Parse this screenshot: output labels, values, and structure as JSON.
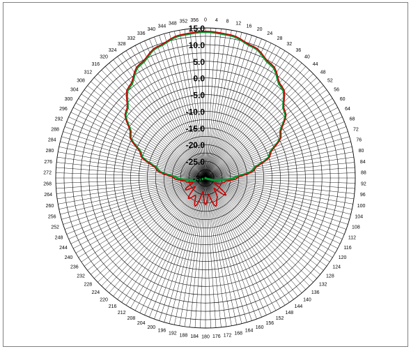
{
  "chart_data": {
    "type": "line",
    "polar": true,
    "title": "",
    "angle_ticks_deg": [
      0,
      4,
      8,
      12,
      16,
      20,
      24,
      28,
      32,
      36,
      40,
      44,
      48,
      52,
      56,
      60,
      64,
      68,
      72,
      76,
      80,
      84,
      88,
      92,
      96,
      100,
      104,
      108,
      112,
      116,
      120,
      124,
      128,
      132,
      136,
      140,
      144,
      148,
      152,
      156,
      160,
      164,
      168,
      172,
      176,
      180,
      184,
      188,
      192,
      196,
      200,
      204,
      208,
      212,
      216,
      220,
      224,
      228,
      232,
      236,
      240,
      244,
      248,
      252,
      256,
      260,
      264,
      268,
      272,
      276,
      280,
      284,
      288,
      292,
      296,
      300,
      304,
      308,
      312,
      316,
      320,
      324,
      328,
      332,
      336,
      340,
      344,
      348,
      352,
      356
    ],
    "radial_ticks": [
      "15.0",
      "10.0",
      "5.0",
      "0.0",
      "-5.0",
      "-10.0",
      "-15.0",
      "-20.0",
      "-25.0",
      "-30"
    ],
    "radial_range": [
      -30,
      15
    ],
    "grid": true,
    "series": [
      {
        "color": "#009933",
        "angles_deg": [
          0,
          10,
          20,
          30,
          40,
          50,
          60,
          70,
          80,
          90,
          100,
          110,
          120,
          130,
          140,
          150,
          160,
          170,
          180,
          190,
          200,
          210,
          220,
          230,
          240,
          250,
          260,
          270,
          280,
          290,
          300,
          310,
          320,
          330,
          340,
          350
        ],
        "values": [
          13.8,
          13.4,
          11.8,
          9.2,
          5.5,
          1.0,
          -4.0,
          -9.5,
          -15.5,
          -21.5,
          -26.5,
          -29.0,
          -30.0,
          -30.0,
          -30.0,
          -30.0,
          -30.0,
          -30.0,
          -30.0,
          -30.0,
          -30.0,
          -30.0,
          -30.0,
          -30.0,
          -30.0,
          -29.0,
          -26.5,
          -21.5,
          -15.5,
          -9.5,
          -4.0,
          1.0,
          5.5,
          9.2,
          11.8,
          13.4
        ]
      },
      {
        "color": "#cc0000",
        "angles_deg": [
          0,
          10,
          20,
          30,
          40,
          50,
          60,
          70,
          80,
          90,
          100,
          110,
          120,
          130,
          140,
          150,
          160,
          170,
          180,
          190,
          200,
          210,
          220,
          230,
          240,
          250,
          260,
          270,
          280,
          290,
          300,
          310,
          320,
          330,
          340,
          350
        ],
        "values": [
          14.0,
          13.6,
          12.0,
          9.5,
          5.8,
          1.2,
          -3.8,
          -9.2,
          -15.0,
          -20.5,
          -24.0,
          -25.0,
          -27.0,
          -22.0,
          -26.0,
          -23.0,
          -21.0,
          -25.0,
          -22.0,
          -26.0,
          -21.0,
          -24.0,
          -22.0,
          -26.0,
          -23.0,
          -26.0,
          -24.0,
          -20.5,
          -15.0,
          -9.2,
          -3.8,
          1.2,
          5.8,
          9.5,
          12.0,
          13.6
        ]
      }
    ]
  }
}
